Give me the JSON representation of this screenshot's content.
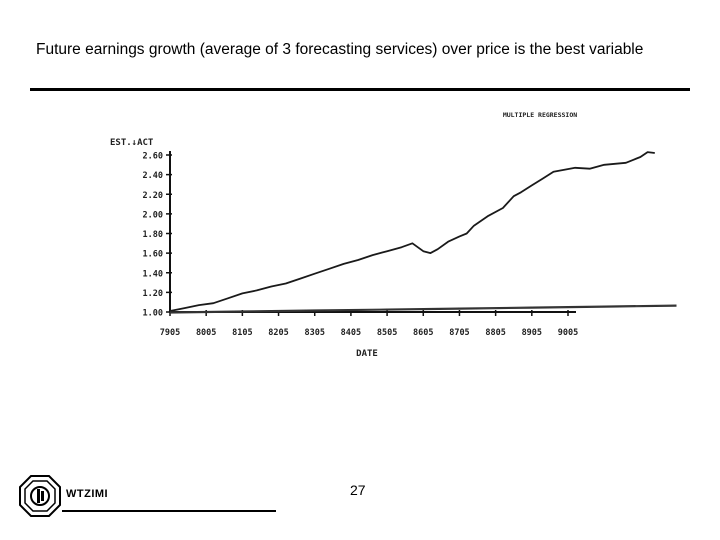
{
  "slide": {
    "title": "Future earnings growth (average of 3 forecasting services) over price is the best variable",
    "page_number": "27"
  },
  "footer": {
    "logo_text": "WTZIMI"
  },
  "chart_data": {
    "type": "line",
    "title": "MULTIPLE REGRESSION",
    "ylabel": "EST.↓ACT",
    "xlabel": "DATE",
    "ylim": [
      1.0,
      2.6
    ],
    "yticks": [
      "2.60",
      "2.40",
      "2.20",
      "2.00",
      "1.80",
      "1.60",
      "1.40",
      "1.20",
      "1.00"
    ],
    "categories": [
      "7905",
      "8005",
      "8105",
      "8205",
      "8305",
      "8405",
      "8505",
      "8605",
      "8705",
      "8805",
      "8905",
      "9005"
    ],
    "grid": false,
    "legend": "none",
    "series": [
      {
        "values": [
          [
            0,
            1.01
          ],
          [
            0.4,
            1.04
          ],
          [
            0.8,
            1.07
          ],
          [
            1.2,
            1.09
          ],
          [
            1.6,
            1.14
          ],
          [
            2.0,
            1.19
          ],
          [
            2.4,
            1.22
          ],
          [
            2.8,
            1.26
          ],
          [
            3.2,
            1.29
          ],
          [
            3.6,
            1.34
          ],
          [
            4.0,
            1.39
          ],
          [
            4.4,
            1.44
          ],
          [
            4.8,
            1.49
          ],
          [
            5.2,
            1.53
          ],
          [
            5.6,
            1.58
          ],
          [
            6.0,
            1.62
          ],
          [
            6.4,
            1.66
          ],
          [
            6.7,
            1.7
          ],
          [
            7.0,
            1.62
          ],
          [
            7.2,
            1.6
          ],
          [
            7.4,
            1.64
          ],
          [
            7.7,
            1.72
          ],
          [
            8.0,
            1.77
          ],
          [
            8.2,
            1.8
          ],
          [
            8.4,
            1.88
          ],
          [
            8.8,
            1.98
          ],
          [
            9.2,
            2.06
          ],
          [
            9.5,
            2.18
          ],
          [
            9.7,
            2.22
          ],
          [
            10.0,
            2.29
          ],
          [
            10.3,
            2.36
          ],
          [
            10.6,
            2.43
          ],
          [
            10.9,
            2.45
          ],
          [
            11.2,
            2.47
          ],
          [
            11.6,
            2.46
          ],
          [
            12.0,
            2.5
          ],
          [
            12.3,
            2.51
          ],
          [
            12.6,
            2.52
          ],
          [
            12.8,
            2.55
          ],
          [
            13.0,
            2.58
          ],
          [
            13.2,
            2.63
          ],
          [
            13.4,
            2.62
          ]
        ],
        "color": "#1a1a1a"
      },
      {
        "values": [
          [
            0,
            1.0
          ],
          [
            2,
            1.01
          ],
          [
            4,
            1.02
          ],
          [
            6,
            1.03
          ],
          [
            8,
            1.04
          ],
          [
            10,
            1.05
          ],
          [
            12,
            1.06
          ],
          [
            14,
            1.07
          ]
        ],
        "color": "#333333"
      },
      {
        "values": [
          [
            0,
            0.99
          ],
          [
            2,
            1.0
          ],
          [
            4,
            1.01
          ],
          [
            6,
            1.02
          ],
          [
            8,
            1.03
          ],
          [
            10,
            1.04
          ],
          [
            12,
            1.05
          ],
          [
            14,
            1.06
          ]
        ],
        "color": "#333333"
      }
    ]
  }
}
